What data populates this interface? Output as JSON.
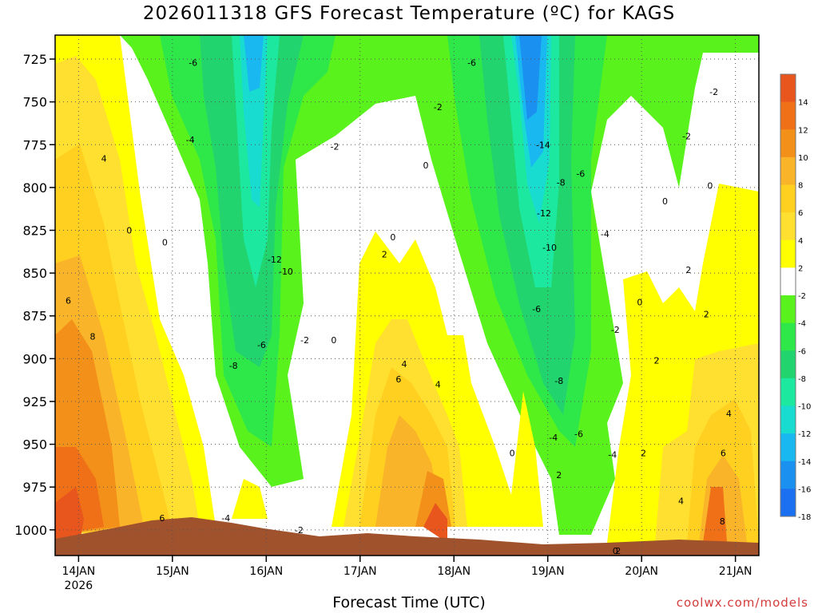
{
  "chart_data": {
    "type": "contour",
    "title": "2026011318 GFS Forecast Temperature (ºC) for KAGS",
    "xlabel": "Forecast Time (UTC)",
    "ylabel": "",
    "y_ticks": [
      725,
      750,
      775,
      800,
      825,
      850,
      875,
      900,
      925,
      950,
      975,
      1000
    ],
    "ylim": [
      1015,
      711
    ],
    "x_ticks": [
      {
        "label": "14JAN",
        "sub": "2026",
        "day": 0.25
      },
      {
        "label": "15JAN",
        "sub": "",
        "day": 1.25
      },
      {
        "label": "16JAN",
        "sub": "",
        "day": 2.25
      },
      {
        "label": "17JAN",
        "sub": "",
        "day": 3.25
      },
      {
        "label": "18JAN",
        "sub": "",
        "day": 4.25
      },
      {
        "label": "19JAN",
        "sub": "",
        "day": 5.25
      },
      {
        "label": "20JAN",
        "sub": "",
        "day": 6.25
      },
      {
        "label": "21JAN",
        "sub": "",
        "day": 7.25
      }
    ],
    "xlim": [
      0,
      7.5
    ],
    "grid": true,
    "colorbar": {
      "levels": [
        14,
        12,
        10,
        8,
        6,
        4,
        2,
        -2,
        -4,
        -6,
        -8,
        -10,
        -12,
        -14,
        -16,
        -18
      ],
      "colors": [
        "#e8561e",
        "#f07018",
        "#f3901a",
        "#f9b42a",
        "#ffd020",
        "#ffe030",
        "#ffff00",
        "#ffffff",
        "#5af21c",
        "#2ee84a",
        "#22d46e",
        "#1ce8a0",
        "#18dcd0",
        "#1ab8f0",
        "#1a90f0",
        "#1a70f0"
      ]
    },
    "contour_labels": [
      {
        "text": "-6",
        "day": 1.47,
        "p": 727
      },
      {
        "text": "-6",
        "day": 4.44,
        "p": 727
      },
      {
        "text": "-2",
        "day": 4.08,
        "p": 753
      },
      {
        "text": "-2",
        "day": 7.02,
        "p": 744
      },
      {
        "text": "-4",
        "day": 1.44,
        "p": 772
      },
      {
        "text": "-2",
        "day": 2.98,
        "p": 776
      },
      {
        "text": "4",
        "day": 0.52,
        "p": 783
      },
      {
        "text": "0",
        "day": 3.95,
        "p": 787
      },
      {
        "text": "-14",
        "day": 5.2,
        "p": 775
      },
      {
        "text": "-8",
        "day": 5.39,
        "p": 797
      },
      {
        "text": "-6",
        "day": 5.6,
        "p": 792
      },
      {
        "text": "-2",
        "day": 6.73,
        "p": 770
      },
      {
        "text": "0",
        "day": 6.98,
        "p": 799
      },
      {
        "text": "0",
        "day": 6.5,
        "p": 808
      },
      {
        "text": "-12",
        "day": 5.21,
        "p": 815
      },
      {
        "text": "-12",
        "day": 2.34,
        "p": 842
      },
      {
        "text": "0",
        "day": 0.79,
        "p": 825
      },
      {
        "text": "0",
        "day": 1.17,
        "p": 832
      },
      {
        "text": "0",
        "day": 3.6,
        "p": 829
      },
      {
        "text": "-4",
        "day": 5.86,
        "p": 827
      },
      {
        "text": "-10",
        "day": 5.27,
        "p": 835
      },
      {
        "text": "2",
        "day": 3.51,
        "p": 839
      },
      {
        "text": "-10",
        "day": 2.46,
        "p": 849
      },
      {
        "text": "2",
        "day": 6.75,
        "p": 848
      },
      {
        "text": "6",
        "day": 0.14,
        "p": 866
      },
      {
        "text": "0",
        "day": 6.23,
        "p": 867
      },
      {
        "text": "-6",
        "day": 5.13,
        "p": 871
      },
      {
        "text": "2",
        "day": 6.94,
        "p": 874
      },
      {
        "text": "8",
        "day": 0.4,
        "p": 887
      },
      {
        "text": "-6",
        "day": 2.2,
        "p": 892
      },
      {
        "text": "-2",
        "day": 2.66,
        "p": 889
      },
      {
        "text": "0",
        "day": 2.97,
        "p": 889
      },
      {
        "text": "-2",
        "day": 5.97,
        "p": 883
      },
      {
        "text": "2",
        "day": 6.41,
        "p": 901
      },
      {
        "text": "4",
        "day": 3.72,
        "p": 903
      },
      {
        "text": "-8",
        "day": 1.9,
        "p": 904
      },
      {
        "text": "-8",
        "day": 5.37,
        "p": 913
      },
      {
        "text": "6",
        "day": 3.66,
        "p": 912
      },
      {
        "text": "4",
        "day": 4.08,
        "p": 915
      },
      {
        "text": "4",
        "day": 7.18,
        "p": 932
      },
      {
        "text": "-4",
        "day": 5.31,
        "p": 946
      },
      {
        "text": "-6",
        "day": 5.58,
        "p": 944
      },
      {
        "text": "0",
        "day": 4.87,
        "p": 955
      },
      {
        "text": "2",
        "day": 6.27,
        "p": 955
      },
      {
        "text": "6",
        "day": 7.12,
        "p": 955
      },
      {
        "text": "-4",
        "day": 5.94,
        "p": 956
      },
      {
        "text": "2",
        "day": 5.37,
        "p": 968
      },
      {
        "text": "4",
        "day": 6.67,
        "p": 983
      },
      {
        "text": "6",
        "day": 1.14,
        "p": 993
      },
      {
        "text": "-4",
        "day": 1.82,
        "p": 993
      },
      {
        "text": "-2",
        "day": 2.6,
        "p": 1000
      },
      {
        "text": "8",
        "day": 7.11,
        "p": 995
      },
      {
        "text": "2",
        "day": 6.0,
        "p": 1018
      },
      {
        "text": "0",
        "day": 5.97,
        "p": 1045
      }
    ]
  },
  "credit": "coolwx.com/models"
}
